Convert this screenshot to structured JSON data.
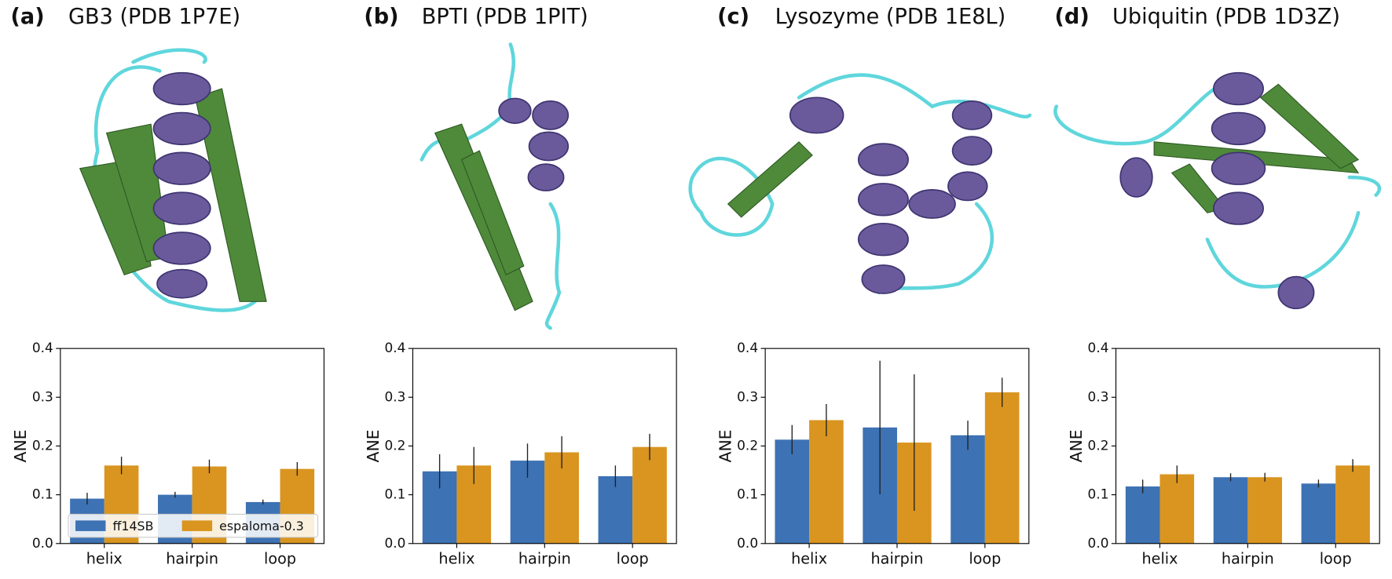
{
  "chart_data": [
    {
      "type": "bar",
      "label": "(a)",
      "title": "GB3 (PDB 1P7E)",
      "ylabel": "ANE",
      "categories": [
        "helix",
        "hairpin",
        "loop"
      ],
      "series": [
        {
          "name": "ff14SB",
          "color": "#3d72b4",
          "values": [
            0.092,
            0.1,
            0.085
          ],
          "errors": [
            0.012,
            0.006,
            0.005
          ]
        },
        {
          "name": "espaloma-0.3",
          "color": "#d9951f",
          "values": [
            0.16,
            0.158,
            0.153
          ],
          "errors": [
            0.018,
            0.014,
            0.014
          ]
        }
      ],
      "ylim": [
        0,
        0.4
      ],
      "yticks": [
        {
          "value": 0,
          "label": "0.0"
        },
        0.1,
        0.2,
        0.3,
        0.4
      ],
      "legend": "lower left"
    },
    {
      "type": "bar",
      "label": "(b)",
      "title": "BPTI (PDB 1PIT)",
      "ylabel": "ANE",
      "categories": [
        "helix",
        "hairpin",
        "loop"
      ],
      "series": [
        {
          "color": "#3d72b4",
          "values": [
            0.148,
            0.17,
            0.138
          ],
          "errors": [
            0.035,
            0.035,
            0.022
          ]
        },
        {
          "color": "#d9951f",
          "values": [
            0.16,
            0.187,
            0.198
          ],
          "errors": [
            0.038,
            0.033,
            0.027
          ]
        }
      ],
      "ylim": [
        0,
        0.4
      ],
      "yticks": [
        {
          "value": 0,
          "label": "0.0"
        },
        0.1,
        0.2,
        0.3,
        0.4
      ]
    },
    {
      "type": "bar",
      "label": "(c)",
      "title": "Lysozyme (PDB 1E8L)",
      "ylabel": "ANE",
      "categories": [
        "helix",
        "hairpin",
        "loop"
      ],
      "series": [
        {
          "color": "#3d72b4",
          "values": [
            0.213,
            0.238,
            0.222
          ],
          "errors": [
            0.03,
            0.137,
            0.03
          ]
        },
        {
          "color": "#d9951f",
          "values": [
            0.253,
            0.207,
            0.31
          ],
          "errors": [
            0.033,
            0.14,
            0.03
          ]
        }
      ],
      "ylim": [
        0,
        0.4
      ],
      "yticks": [
        {
          "value": 0,
          "label": "0.0"
        },
        0.1,
        0.2,
        0.3,
        0.4
      ]
    },
    {
      "type": "bar",
      "label": "(d)",
      "title": "Ubiquitin (PDB 1D3Z)",
      "ylabel": "ANE",
      "categories": [
        "helix",
        "hairpin",
        "loop"
      ],
      "series": [
        {
          "color": "#3d72b4",
          "values": [
            0.117,
            0.136,
            0.123
          ],
          "errors": [
            0.014,
            0.008,
            0.008
          ]
        },
        {
          "color": "#d9951f",
          "values": [
            0.142,
            0.136,
            0.16
          ],
          "errors": [
            0.018,
            0.009,
            0.013
          ]
        }
      ],
      "ylim": [
        0,
        0.4
      ],
      "yticks": [
        {
          "value": 0,
          "label": "0.0"
        },
        0.1,
        0.2,
        0.3,
        0.4
      ]
    }
  ]
}
